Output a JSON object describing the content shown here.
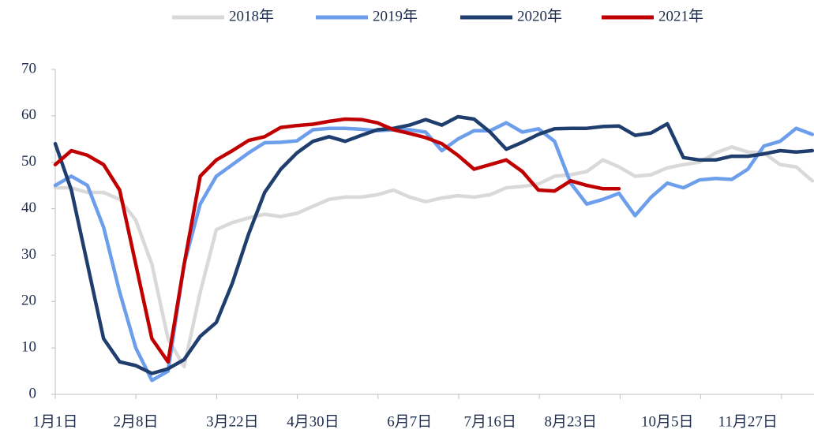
{
  "chart_data": {
    "type": "line",
    "categories": [
      "1月1日",
      null,
      null,
      null,
      null,
      "2月8日",
      null,
      null,
      null,
      null,
      null,
      "3月22日",
      null,
      null,
      null,
      null,
      "4月30日",
      null,
      null,
      null,
      null,
      null,
      "6月7日",
      null,
      null,
      null,
      null,
      "7月16日",
      null,
      null,
      null,
      null,
      "8月23日",
      null,
      null,
      null,
      null,
      null,
      "10月5日",
      null,
      null,
      null,
      null,
      "11月27日",
      null,
      null,
      null,
      null
    ],
    "ylim": [
      0,
      70
    ],
    "yticks": [
      0,
      10,
      20,
      30,
      40,
      50,
      60,
      70
    ],
    "grid": false,
    "legend": "top",
    "series": [
      {
        "name": "2018年",
        "color": "#d9d9d9",
        "values": [
          44.5,
          44.5,
          43.5,
          43.5,
          42,
          37.5,
          28,
          12,
          6,
          22,
          35.5,
          37,
          38,
          38.8,
          38.3,
          39,
          40.5,
          42,
          42.5,
          42.5,
          43,
          44,
          42.5,
          41.5,
          42.3,
          42.8,
          42.5,
          43,
          44.5,
          44.8,
          45.3,
          47,
          47.3,
          48,
          50.5,
          49,
          47,
          47.3,
          48.8,
          49.5,
          50,
          52,
          53.3,
          52.2,
          52,
          49.5,
          49,
          46
        ]
      },
      {
        "name": "2019年",
        "color": "#6d9eeb",
        "values": [
          45,
          47,
          45,
          36,
          22,
          10,
          3,
          5,
          28,
          41,
          47,
          49.5,
          52,
          54.2,
          54.3,
          54.6,
          57,
          57.3,
          57.3,
          57.1,
          56.8,
          57,
          57,
          56.5,
          52.5,
          55,
          56.8,
          56.8,
          58.5,
          56.5,
          57.2,
          54.5,
          45.5,
          41,
          42,
          43.3,
          38.5,
          42.5,
          45.5,
          44.5,
          46.2,
          46.5,
          46.3,
          48.5,
          53.5,
          54.5,
          57.3,
          56
        ]
      },
      {
        "name": "2020年",
        "color": "#1f3e6e",
        "values": [
          54,
          44,
          28,
          12,
          7,
          6.2,
          4.5,
          5.5,
          7.5,
          12.5,
          15.5,
          24,
          34.5,
          43.5,
          48.5,
          52,
          54.5,
          55.5,
          54.5,
          55.8,
          57,
          57.3,
          58,
          59.2,
          58,
          59.8,
          59.3,
          56.5,
          52.8,
          54.3,
          56,
          57.2,
          57.3,
          57.3,
          57.7,
          57.8,
          55.8,
          56.3,
          58.3,
          51,
          50.5,
          50.5,
          51.3,
          51.3,
          51.8,
          52.5,
          52.2,
          52.5
        ]
      },
      {
        "name": "2021年",
        "color": "#c00000",
        "values": [
          49.5,
          52.5,
          51.5,
          49.5,
          44,
          28,
          12,
          7,
          28,
          47,
          50.5,
          52.5,
          54.7,
          55.5,
          57.5,
          57.9,
          58.2,
          58.8,
          59.3,
          59.2,
          58.5,
          57,
          56.2,
          55.3,
          54,
          51.5,
          48.5,
          49.5,
          50.5,
          48,
          44,
          43.8,
          46,
          45,
          44.3,
          44.3,
          null,
          null,
          null,
          null,
          null,
          null,
          null,
          null,
          null,
          null,
          null,
          null
        ]
      }
    ]
  }
}
